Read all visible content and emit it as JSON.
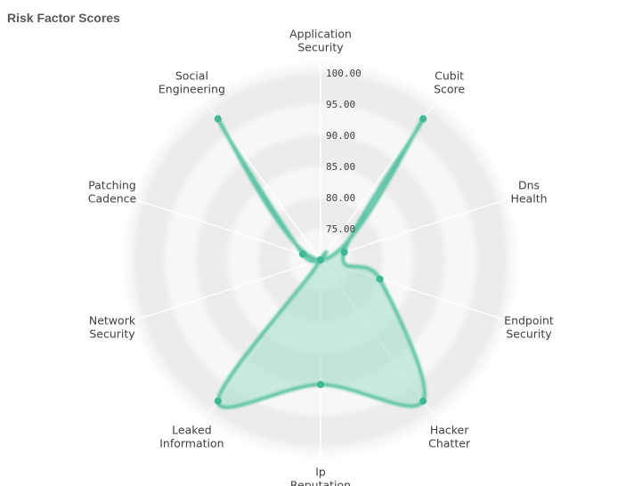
{
  "chart_data": {
    "type": "radar",
    "title": "Risk Factor Scores",
    "axes": [
      "Application Security",
      "Cubit Score",
      "Dns Health",
      "Endpoint Security",
      "Hacker Chatter",
      "Ip Reputation",
      "Leaked Information",
      "Network Security",
      "Patching Cadence",
      "Social Engineering"
    ],
    "axis_labels": [
      [
        "Application",
        "Security"
      ],
      [
        "Cubit",
        "Score"
      ],
      [
        "Dns",
        "Health"
      ],
      [
        "Endpoint",
        "Security"
      ],
      [
        "Hacker",
        "Chatter"
      ],
      [
        "Ip",
        "Reputation"
      ],
      [
        "Leaked",
        "Information"
      ],
      [
        "Network",
        "Security"
      ],
      [
        "Patching",
        "Cadence"
      ],
      [
        "Social",
        "Engineering"
      ]
    ],
    "values": [
      70,
      98,
      74,
      80,
      98,
      90,
      98,
      69,
      73,
      98
    ],
    "range": [
      70,
      100
    ],
    "ticks": [
      "75.00",
      "80.00",
      "85.00",
      "90.00",
      "95.00",
      "100.00"
    ],
    "tick_values": [
      75,
      80,
      85,
      90,
      95,
      100
    ],
    "grid": true,
    "colors": {
      "series_stroke": "#5fc4a6",
      "series_fill": "#a9dfcc",
      "point": "#3db892",
      "band_dark": "#ececec",
      "band_light": "#f7f7f7",
      "spoke": "#ffffff"
    }
  }
}
